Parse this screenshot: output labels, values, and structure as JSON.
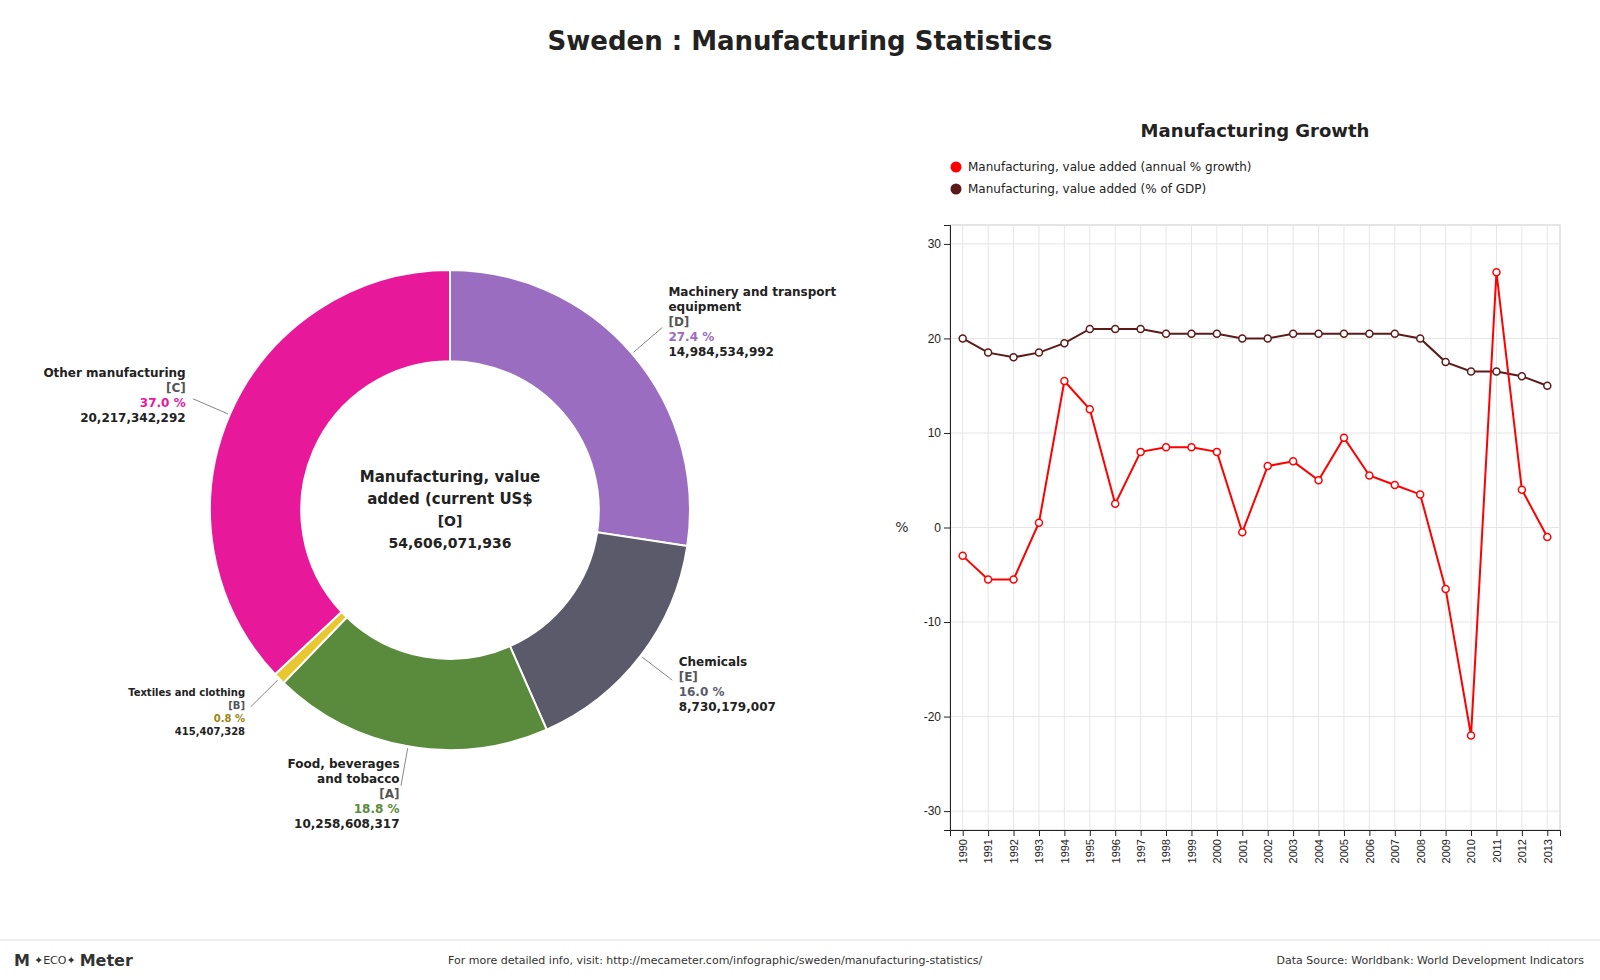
{
  "title": "Sweden : Manufacturing Statistics",
  "annotations": [
    "M",
    "✦ECO✦",
    "Meter",
    "For more detailed info, visit: http://mecameter.com/infographic/sweden/manufacturing-statistics/",
    "Data Source: Worldbank: World Development Indicators"
  ],
  "chart_data": [
    {
      "type": "pie",
      "categories": [
        "Machinery and transport\nequipment",
        "Chemicals",
        "Food, beverages\nand tobacco",
        "Textiles and clothing",
        "Other manufacturing"
      ],
      "codes": [
        "[D]",
        "[E]",
        "[A]",
        "[B]",
        "[C]"
      ],
      "values": [
        27.4,
        16.0,
        18.8,
        0.8,
        37.0
      ],
      "value_labels": [
        "27.4 %",
        "16.0 %",
        "18.8 %",
        "0.8 %",
        "37.0 %"
      ],
      "amounts": [
        14984534992,
        8730179007,
        10258608317,
        415407328,
        20217342292
      ],
      "amount_labels": [
        "14,984,534,992",
        "8,730,179,007",
        "10,258,608,317",
        "415,407,328",
        "20,217,342,292"
      ],
      "colors": [
        "#9B6DC0",
        "#5A5A6A",
        "#5A8A3C",
        "#E8C830",
        "#E8189A"
      ],
      "data_labels": true,
      "annotations": [
        "Manufacturing, value",
        "added (current US$",
        "[O]",
        "54,606,071,936"
      ]
    },
    {
      "type": "line",
      "title": "Manufacturing Growth",
      "x": [
        1990,
        1991,
        1992,
        1993,
        1994,
        1995,
        1996,
        1997,
        1998,
        1999,
        2000,
        2001,
        2002,
        2003,
        2004,
        2005,
        2006,
        2007,
        2008,
        2009,
        2010,
        2011,
        2012,
        2013
      ],
      "xlim": [
        1989.5,
        2013.5
      ],
      "xticks": [
        1990,
        1991,
        1992,
        1993,
        1994,
        1995,
        1996,
        1997,
        1998,
        1999,
        2000,
        2001,
        2002,
        2003,
        2004,
        2005,
        2006,
        2007,
        2008,
        2009,
        2010,
        2011,
        2012,
        2013
      ],
      "ylim": [
        -32,
        32
      ],
      "yticks": [
        -30,
        -20,
        -10,
        0,
        10,
        20,
        30
      ],
      "y_label": "%",
      "grid": true,
      "legend": "top left",
      "series": [
        {
          "name": "Manufacturing, value added (annual % growth)",
          "color": "#FF0000",
          "marker": "circle",
          "values": [
            -3.0,
            -5.5,
            -5.5,
            0.5,
            15.5,
            12.5,
            2.5,
            8.0,
            8.5,
            8.5,
            8.0,
            -0.5,
            6.5,
            7.0,
            5.0,
            9.5,
            5.5,
            4.5,
            3.5,
            -6.5,
            -22.0,
            27.0,
            4.0,
            -1.0
          ]
        },
        {
          "name": "Manufacturing, value added (% of GDP)",
          "color": "#5C1A1A",
          "marker": "circle",
          "values": [
            20.0,
            18.5,
            18.0,
            18.5,
            19.5,
            21.0,
            21.0,
            21.0,
            20.5,
            20.5,
            20.5,
            20.0,
            20.0,
            20.5,
            20.5,
            20.5,
            20.5,
            20.5,
            20.0,
            17.5,
            16.5,
            16.5,
            16.0,
            15.0
          ]
        }
      ]
    }
  ]
}
